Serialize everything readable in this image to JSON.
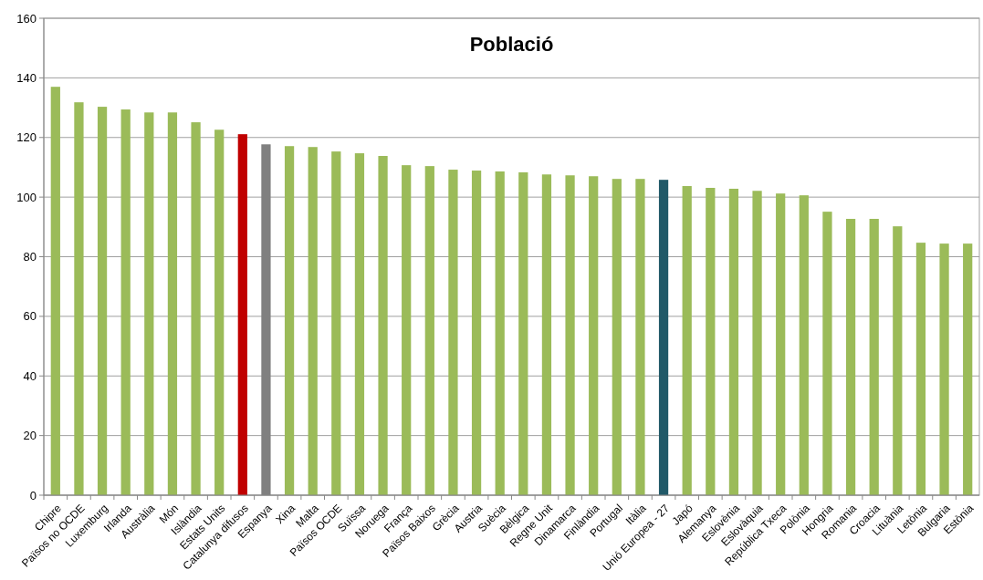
{
  "chart_data": {
    "type": "bar",
    "title": "Població",
    "categories": [
      "Chipre",
      "Països no OCDE",
      "Luxemburg",
      "Irlanda",
      "Austràlia",
      "Món",
      "Islàndia",
      "Estats Units",
      "Catalunya difusos",
      "Espanya",
      "Xina",
      "Malta",
      "Països OCDE",
      "Suïssa",
      "Noruega",
      "França",
      "Països Baixos",
      "Grècia",
      "Austria",
      "Suècia",
      "Bèlgica",
      "Regne Unit",
      "Dinamarca",
      "Finlàndia",
      "Portugal",
      "Itàlia",
      "Unió Europea - 27",
      "Japó",
      "Alemanya",
      "Eslovènia",
      "Eslovàquia",
      "República Txeca",
      "Polònia",
      "Hongria",
      "Romania",
      "Croacia",
      "Lituània",
      "Letònia",
      "Bulgaria",
      "Estònia"
    ],
    "values": [
      137,
      131.8,
      130.3,
      129.4,
      128.4,
      128.4,
      125.1,
      122.6,
      121.1,
      117.7,
      117.1,
      116.8,
      115.3,
      114.7,
      113.8,
      110.7,
      110.4,
      109.2,
      108.9,
      108.6,
      108.3,
      107.6,
      107.3,
      107,
      106.1,
      106.1,
      105.8,
      103.7,
      103.1,
      102.8,
      102.1,
      101.2,
      100.6,
      95.1,
      92.7,
      92.7,
      90.2,
      84.7,
      84.4,
      84.4
    ],
    "colors": [
      "#9bbb59",
      "#9bbb59",
      "#9bbb59",
      "#9bbb59",
      "#9bbb59",
      "#9bbb59",
      "#9bbb59",
      "#9bbb59",
      "#c00000",
      "#808080",
      "#9bbb59",
      "#9bbb59",
      "#9bbb59",
      "#9bbb59",
      "#9bbb59",
      "#9bbb59",
      "#9bbb59",
      "#9bbb59",
      "#9bbb59",
      "#9bbb59",
      "#9bbb59",
      "#9bbb59",
      "#9bbb59",
      "#9bbb59",
      "#9bbb59",
      "#9bbb59",
      "#215968",
      "#9bbb59",
      "#9bbb59",
      "#9bbb59",
      "#9bbb59",
      "#9bbb59",
      "#9bbb59",
      "#9bbb59",
      "#9bbb59",
      "#9bbb59",
      "#9bbb59",
      "#9bbb59",
      "#9bbb59",
      "#9bbb59"
    ],
    "ylim": [
      0,
      160
    ],
    "yticks": [
      0,
      20,
      40,
      60,
      80,
      100,
      120,
      140,
      160
    ],
    "grid": "y"
  }
}
